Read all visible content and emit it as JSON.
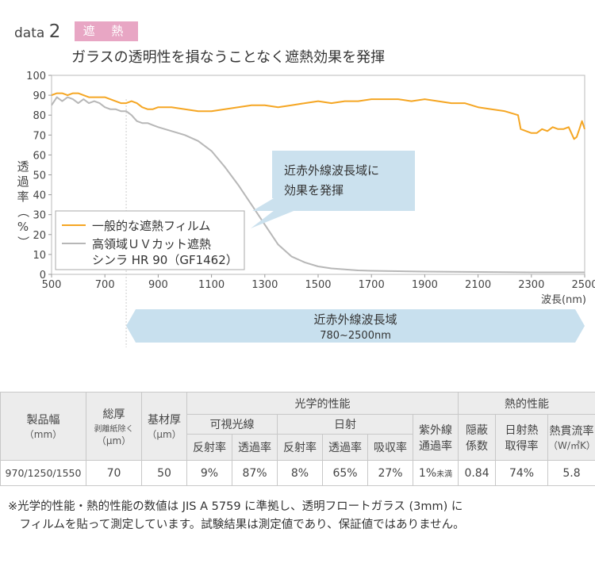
{
  "header": {
    "data_prefix": "data",
    "data_number": "2",
    "badge": "遮 熱",
    "subtitle": "ガラスの透明性を損なうことなく遮熱効果を発揮"
  },
  "chart_data": {
    "type": "line",
    "ylabel": "透過率（%）",
    "xlabel": "波長(nm)",
    "xlim": [
      500,
      2500
    ],
    "ylim": [
      0,
      100
    ],
    "x_ticks": [
      500,
      700,
      900,
      1100,
      1300,
      1500,
      1700,
      1900,
      2100,
      2300,
      2500
    ],
    "y_ticks": [
      0,
      10,
      20,
      30,
      40,
      50,
      60,
      70,
      80,
      90,
      100
    ],
    "series": [
      {
        "name": "一般的な遮熱フィルム",
        "color": "#f5a623",
        "x": [
          500,
          520,
          540,
          560,
          580,
          600,
          620,
          640,
          660,
          680,
          700,
          720,
          740,
          760,
          780,
          800,
          820,
          840,
          860,
          880,
          900,
          950,
          1000,
          1050,
          1100,
          1150,
          1200,
          1250,
          1300,
          1350,
          1400,
          1450,
          1500,
          1550,
          1600,
          1650,
          1700,
          1750,
          1800,
          1850,
          1900,
          1950,
          2000,
          2050,
          2100,
          2150,
          2200,
          2250,
          2260,
          2300,
          2320,
          2340,
          2360,
          2380,
          2400,
          2420,
          2440,
          2460,
          2470,
          2480,
          2490,
          2500
        ],
        "y": [
          90,
          91,
          91,
          90,
          91,
          91,
          90,
          89,
          89,
          89,
          89,
          88,
          87,
          86,
          86,
          87,
          86,
          84,
          83,
          83,
          84,
          84,
          83,
          82,
          82,
          83,
          84,
          85,
          85,
          84,
          85,
          86,
          87,
          86,
          87,
          87,
          88,
          88,
          88,
          87,
          88,
          87,
          86,
          86,
          84,
          83,
          82,
          80,
          73,
          71,
          71,
          73,
          72,
          74,
          73,
          73,
          74,
          68,
          69,
          73,
          77,
          73
        ]
      },
      {
        "name": "高領域ＵＶカット遮熱",
        "name2": "シンラ HR 90（GF1462）",
        "color": "#b7b7b7",
        "x": [
          500,
          520,
          540,
          560,
          580,
          600,
          620,
          640,
          660,
          680,
          700,
          720,
          740,
          760,
          780,
          800,
          820,
          840,
          860,
          880,
          900,
          950,
          1000,
          1050,
          1100,
          1150,
          1200,
          1250,
          1300,
          1350,
          1400,
          1450,
          1500,
          1550,
          1600,
          1650,
          1700,
          1800,
          1900,
          2000,
          2100,
          2200,
          2300,
          2400,
          2500
        ],
        "y": [
          85,
          89,
          87,
          89,
          88,
          86,
          88,
          86,
          87,
          86,
          84,
          83,
          83,
          82,
          82,
          80,
          77,
          76,
          76,
          75,
          74,
          72,
          70,
          67,
          62,
          54,
          45,
          35,
          25,
          15,
          9,
          6,
          4,
          3,
          2.5,
          2,
          1.8,
          1.6,
          1.4,
          1.3,
          1.2,
          1.1,
          1.0,
          1.0,
          1.0
        ]
      }
    ],
    "annotation": "近赤外線波長域に\n効果を発揮",
    "band": {
      "label": "近赤外線波長域",
      "range_label": "780~2500nm",
      "from": 780,
      "to": 2500
    },
    "legend_position": "bottom-left",
    "grid": false
  },
  "table": {
    "product_width": "製品幅",
    "product_width_unit": "（mm）",
    "thickness": "総厚",
    "thickness_sub": "剥離紙除く",
    "thickness_unit": "（μm）",
    "base": "基材厚",
    "base_unit": "（μm）",
    "optical": "光学的性能",
    "thermal": "熱的性能",
    "visible": "可視光線",
    "solar": "日射",
    "uv": "紫外線",
    "uv2": "通過率",
    "reflect": "反射率",
    "transmit": "透過率",
    "absorb": "吸収率",
    "shading": "隠蔽",
    "shading2": "係数",
    "solar_heat": "日射熱",
    "solar_heat2": "取得率",
    "heat_flow": "熱貫流率",
    "heat_flow_unit": "（W/㎡K）",
    "row": [
      "970/1250/1550",
      "70",
      "50",
      "9%",
      "87%",
      "8%",
      "65%",
      "27%",
      "1%",
      "未満",
      "0.84",
      "74%",
      "5.8"
    ]
  },
  "note": "※光学的性能・熱的性能の数値は JIS A 5759 に準拠し、透明フロートガラス (3mm) に\n　フィルムを貼って測定しています。試験結果は測定値であり、保証値ではありません。"
}
